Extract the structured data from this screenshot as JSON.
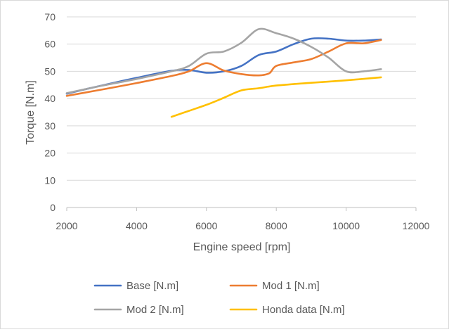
{
  "chart_data": {
    "type": "line",
    "title": "",
    "xlabel": "Engine speed [rpm]",
    "ylabel": "Torque [N.m]",
    "xlim": [
      2000,
      12000
    ],
    "ylim": [
      0,
      70
    ],
    "xticks": [
      2000,
      4000,
      6000,
      8000,
      10000,
      12000
    ],
    "yticks": [
      0,
      10,
      20,
      30,
      40,
      50,
      60,
      70
    ],
    "grid": "horizontal",
    "legend_position": "bottom",
    "series": [
      {
        "name": "Base  [N.m]",
        "color": "#4472C4",
        "x": [
          2000,
          3000,
          4000,
          5000,
          5500,
          6000,
          6500,
          7000,
          7500,
          8000,
          8500,
          9000,
          9500,
          10000,
          10500,
          11000
        ],
        "y": [
          41.8,
          44.8,
          47.6,
          50.2,
          50.5,
          49.5,
          50.0,
          52.0,
          56.0,
          57.3,
          60.0,
          62.0,
          62.0,
          61.3,
          61.3,
          61.7
        ]
      },
      {
        "name": "Mod 1  [N.m]",
        "color": "#ED7D31",
        "x": [
          2000,
          3000,
          4000,
          5000,
          5500,
          6000,
          6500,
          7000,
          7500,
          7800,
          8000,
          8500,
          9000,
          9500,
          10000,
          10500,
          11000
        ],
        "y": [
          41.0,
          43.3,
          45.7,
          48.3,
          50.0,
          53.0,
          50.3,
          49.0,
          48.5,
          49.3,
          52.0,
          53.3,
          54.5,
          57.3,
          60.3,
          60.3,
          61.5
        ]
      },
      {
        "name": "Mod 2  [N.m]",
        "color": "#A5A5A5",
        "x": [
          2000,
          3000,
          4000,
          5000,
          5500,
          6000,
          6500,
          7000,
          7500,
          8000,
          8500,
          9000,
          9500,
          10000,
          10500,
          11000
        ],
        "y": [
          42.0,
          44.7,
          47.2,
          50.0,
          52.0,
          56.5,
          57.3,
          60.5,
          65.5,
          64.0,
          62.0,
          59.0,
          55.0,
          50.0,
          50.0,
          50.8
        ]
      },
      {
        "name": "Honda data  [N.m]",
        "color": "#FFC000",
        "x": [
          5000,
          5500,
          6000,
          6500,
          7000,
          7500,
          8000,
          9000,
          10000,
          11000
        ],
        "y": [
          33.3,
          35.5,
          37.7,
          40.3,
          43.0,
          43.8,
          44.8,
          45.8,
          46.7,
          47.8
        ]
      }
    ]
  }
}
